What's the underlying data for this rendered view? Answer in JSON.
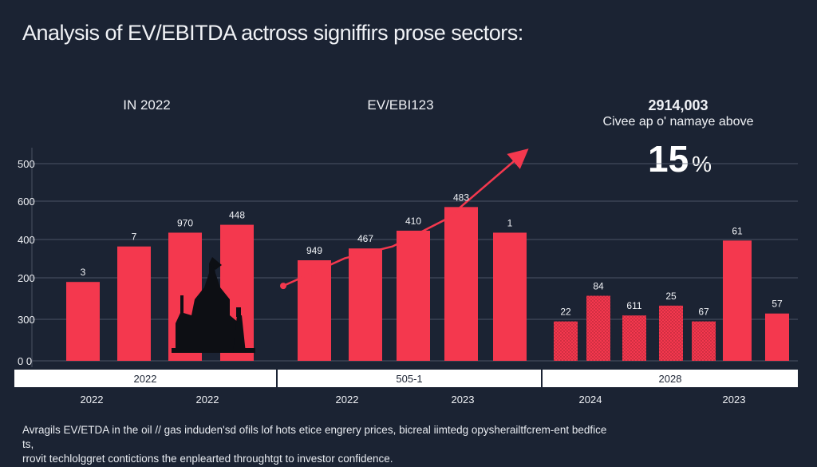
{
  "title": "Analysis of EV/EBITDA actross signiffirs prose sectors:",
  "panels": [
    {
      "heading": "IN 2022",
      "heading_bold": "2022"
    },
    {
      "heading": "EV/EBI123"
    },
    {
      "heading_line1": "2914,003",
      "heading_line2": "Civee ap o' namaye above",
      "highlight_value": "15",
      "highlight_symbol": "%"
    }
  ],
  "footnote": {
    "line1": "Avragils EV/ETDA in the oil // gas induden'sd ofils lof hots etice engrery prices, bicreal iimtedg opysherailtfcrem-ent bedfice ts,",
    "line2": "rrovit techlolggret contictions the enplearted throughtgt to investor confidence."
  },
  "chart_data": {
    "type": "bar",
    "title": "Analysis of EV/EBITDA actross signiffirs prose sectors:",
    "yticks": [
      "500",
      "600",
      "400",
      "200",
      "300",
      "0 0"
    ],
    "ylim": [
      0,
      500
    ],
    "grid": true,
    "panels": [
      {
        "band_label": "2022",
        "xlabels": [
          "2022",
          "2022"
        ],
        "bars": [
          {
            "label": "3",
            "value": 200
          },
          {
            "label": "7",
            "value": 290
          },
          {
            "label": "970",
            "value": 325
          },
          {
            "label": "448",
            "value": 345
          }
        ]
      },
      {
        "band_label": "505-1",
        "xlabels": [
          "2022",
          "2023"
        ],
        "bars": [
          {
            "label": "949",
            "value": 255
          },
          {
            "label": "467",
            "value": 285
          },
          {
            "label": "410",
            "value": 330
          },
          {
            "label": "483",
            "value": 390
          },
          {
            "label": "1",
            "value": 325
          }
        ],
        "trend": [
          190,
          260,
          290,
          360,
          525
        ]
      },
      {
        "band_label": "2028",
        "xlabels": [
          "2024",
          "2023"
        ],
        "bars": [
          {
            "label": "22",
            "value": 100
          },
          {
            "label": "84",
            "value": 165
          },
          {
            "label": "611",
            "value": 115
          },
          {
            "label": "25",
            "value": 140
          },
          {
            "label": "67",
            "value": 100
          },
          {
            "label": "61",
            "value": 305
          },
          {
            "label": "57",
            "value": 120
          }
        ]
      }
    ]
  },
  "colors": {
    "background": "#1b2333",
    "bar": "#f4384e",
    "bar_pattern": "#f4384e",
    "grid": "#5d6577",
    "band": "#ffffff",
    "text": "#f0f2f6",
    "icon": "#0d0f14"
  }
}
